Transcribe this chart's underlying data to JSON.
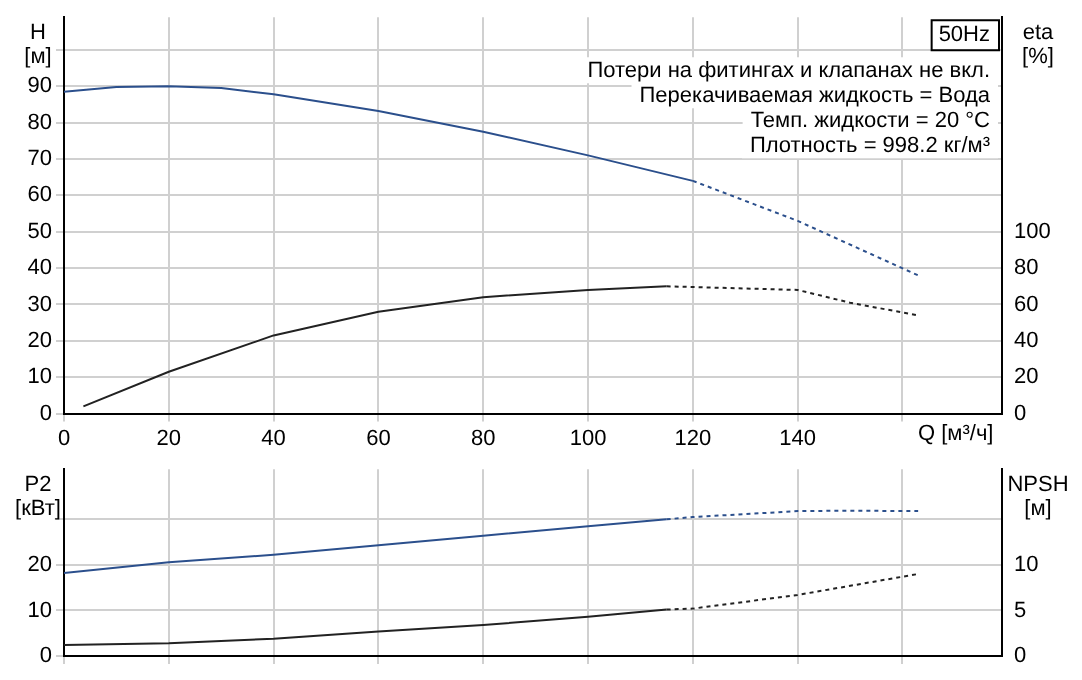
{
  "chart_data": [
    {
      "type": "line",
      "title": "50Hz",
      "xlabel": "Q [м³/ч]",
      "ylabel": "H [м]",
      "y2label": "eta [%]",
      "annotations": [
        "Потери на фитингах и клапанах не вкл.",
        "Перекачиваемая жидкость = Вода",
        "Темп. жидкости = 20 °C",
        "Плотность = 998.2 кг/м³"
      ],
      "xlim": [
        0,
        179
      ],
      "xticks": [
        0,
        20,
        40,
        60,
        80,
        100,
        120,
        140,
        {
          "value": 160,
          "label": null
        }
      ],
      "ylim": [
        0,
        109
      ],
      "yticks": [
        0,
        10,
        20,
        30,
        40,
        50,
        60,
        70,
        80,
        90,
        {
          "value": 100,
          "label": null
        }
      ],
      "y2lim": [
        0,
        218
      ],
      "y2ticks": [
        0,
        20,
        40,
        60,
        80,
        100
      ],
      "grid": true,
      "legend": false,
      "marker": "none",
      "series": [
        {
          "color": "#2b4f8c",
          "line_style": "solid",
          "x": [
            0,
            10,
            20,
            30,
            40,
            60,
            80,
            100,
            120
          ],
          "values": [
            88.5,
            89.8,
            90,
            89.5,
            87.8,
            83.2,
            77.5,
            71,
            64
          ]
        },
        {
          "color": "#2b4f8c",
          "line_style": "dashed",
          "x": [
            120,
            140,
            163
          ],
          "values": [
            64,
            53,
            38
          ]
        },
        {
          "color": "#222222",
          "line_style": "solid",
          "axis": "y2",
          "x": [
            3.7,
            20,
            40,
            60,
            80,
            100,
            115
          ],
          "values": [
            4,
            23,
            43,
            56,
            64,
            68,
            70
          ]
        },
        {
          "color": "#222222",
          "line_style": "dashed",
          "axis": "y2",
          "x": [
            115,
            140,
            150,
            163
          ],
          "values": [
            70,
            68,
            61,
            54
          ]
        }
      ]
    },
    {
      "type": "line",
      "ylabel": "P2 [кВт]",
      "y2label": "NPSH [м]",
      "tick_labels": "y",
      "xlim": [
        0,
        179
      ],
      "xticks": [
        0,
        20,
        40,
        60,
        80,
        100,
        120,
        140,
        160
      ],
      "ylim": [
        0,
        41
      ],
      "yticks": [
        0,
        10,
        20,
        {
          "value": 30,
          "label": null
        }
      ],
      "y2lim": [
        0,
        20.5
      ],
      "y2ticks": [
        0,
        5,
        10
      ],
      "grid": true,
      "legend": false,
      "marker": "none",
      "series": [
        {
          "color": "#2b4f8c",
          "line_style": "solid",
          "x": [
            0,
            20,
            40,
            60,
            80,
            100,
            115
          ],
          "values": [
            18.2,
            20.6,
            22.2,
            24.3,
            26.4,
            28.5,
            30
          ]
        },
        {
          "color": "#2b4f8c",
          "line_style": "dashed",
          "x": [
            115,
            120,
            140,
            150,
            163
          ],
          "values": [
            30,
            30.5,
            31.8,
            31.9,
            31.8
          ]
        },
        {
          "color": "#222222",
          "line_style": "solid",
          "axis": "y2",
          "x": [
            0,
            20,
            40,
            60,
            80,
            100,
            115
          ],
          "values": [
            1.2,
            1.4,
            1.9,
            2.7,
            3.4,
            4.3,
            5.1
          ]
        },
        {
          "color": "#222222",
          "line_style": "dashed",
          "axis": "y2",
          "x": [
            115,
            120,
            140,
            163
          ],
          "values": [
            5.1,
            5.2,
            6.7,
            9.0
          ]
        }
      ]
    }
  ]
}
